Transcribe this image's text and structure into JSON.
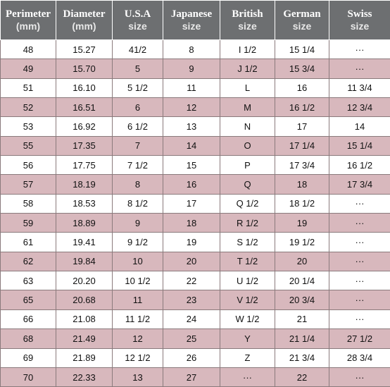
{
  "colors": {
    "header_bg": "#6d6f71",
    "row_odd": "#ffffff",
    "row_even": "#d8b8bd"
  },
  "headers": [
    {
      "top": "Perimeter",
      "bottom": "(mm)"
    },
    {
      "top": "Diameter",
      "bottom": "(mm)"
    },
    {
      "top": "U.S.A",
      "bottom": "size"
    },
    {
      "top": "Japanese",
      "bottom": "size"
    },
    {
      "top": "British",
      "bottom": "size"
    },
    {
      "top": "German",
      "bottom": "size"
    },
    {
      "top": "Swiss",
      "bottom": "size"
    }
  ],
  "rows": [
    [
      "48",
      "15.27",
      "41/2",
      "8",
      "I 1/2",
      "15 1/4",
      "···"
    ],
    [
      "49",
      "15.70",
      "5",
      "9",
      "J 1/2",
      "15 3/4",
      "···"
    ],
    [
      "51",
      "16.10",
      "5 1/2",
      "11",
      "L",
      "16",
      "11 3/4"
    ],
    [
      "52",
      "16.51",
      "6",
      "12",
      "M",
      "16 1/2",
      "12 3/4"
    ],
    [
      "53",
      "16.92",
      "6 1/2",
      "13",
      "N",
      "17",
      "14"
    ],
    [
      "55",
      "17.35",
      "7",
      "14",
      "O",
      "17 1/4",
      "15 1/4"
    ],
    [
      "56",
      "17.75",
      "7 1/2",
      "15",
      "P",
      "17 3/4",
      "16 1/2"
    ],
    [
      "57",
      "18.19",
      "8",
      "16",
      "Q",
      "18",
      "17 3/4"
    ],
    [
      "58",
      "18.53",
      "8 1/2",
      "17",
      "Q  1/2",
      "18 1/2",
      "···"
    ],
    [
      "59",
      "18.89",
      "9",
      "18",
      "R 1/2",
      "19",
      "···"
    ],
    [
      "61",
      "19.41",
      "9 1/2",
      "19",
      "S 1/2",
      "19 1/2",
      "···"
    ],
    [
      "62",
      "19.84",
      "10",
      "20",
      "T 1/2",
      "20",
      "···"
    ],
    [
      "63",
      "20.20",
      "10 1/2",
      "22",
      "U 1/2",
      "20 1/4",
      "···"
    ],
    [
      "65",
      "20.68",
      "11",
      "23",
      "V 1/2",
      "20 3/4",
      "···"
    ],
    [
      "66",
      "21.08",
      "11 1/2",
      "24",
      "W 1/2",
      "21",
      "···"
    ],
    [
      "68",
      "21.49",
      "12",
      "25",
      "Y",
      "21 1/4",
      "27 1/2"
    ],
    [
      "69",
      "21.89",
      "12 1/2",
      "26",
      "Z",
      "21 3/4",
      "28 3/4"
    ],
    [
      "70",
      "22.33",
      "13",
      "27",
      "···",
      "22",
      "···"
    ]
  ]
}
